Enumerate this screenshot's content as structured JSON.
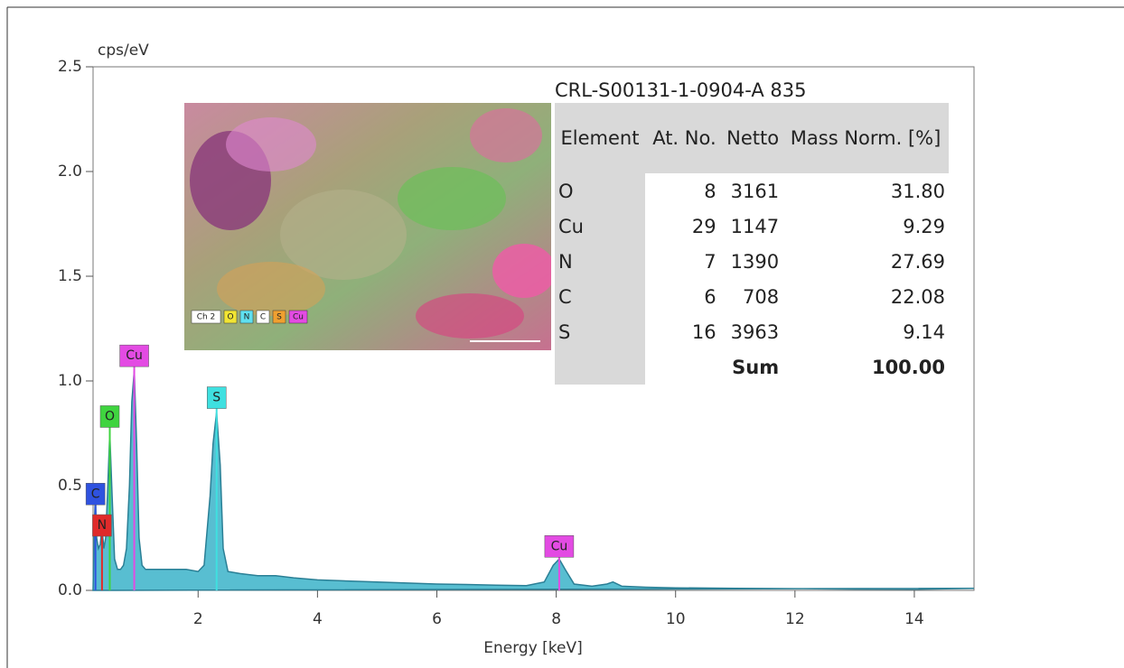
{
  "chart_data": {
    "type": "area",
    "y_label": "cps/eV",
    "x_label": "Energy [keV]",
    "xlim": [
      0.24,
      15
    ],
    "xticks": [
      2,
      4,
      6,
      8,
      10,
      12,
      14
    ],
    "ylim": [
      0,
      2.5
    ],
    "yticks": [
      {
        "value": 0,
        "label": "0.0"
      },
      0.5,
      {
        "value": 1,
        "label": "1.0"
      },
      1.5,
      {
        "value": 2,
        "label": "2.0"
      },
      2.5
    ],
    "color": "#3bb3c9",
    "line_color": "#2a7f95",
    "x": [
      0.24,
      0.26,
      0.28,
      0.3,
      0.33,
      0.36,
      0.39,
      0.42,
      0.45,
      0.48,
      0.52,
      0.56,
      0.6,
      0.65,
      0.7,
      0.75,
      0.8,
      0.85,
      0.89,
      0.93,
      0.97,
      1.01,
      1.06,
      1.12,
      1.2,
      1.4,
      1.6,
      1.8,
      2.0,
      2.1,
      2.2,
      2.25,
      2.31,
      2.37,
      2.42,
      2.5,
      2.7,
      3.0,
      3.3,
      3.6,
      4.0,
      4.5,
      5.0,
      5.5,
      6.0,
      6.5,
      7.0,
      7.5,
      7.8,
      7.95,
      8.05,
      8.15,
      8.3,
      8.6,
      8.85,
      8.95,
      9.1,
      9.5,
      10,
      11,
      12,
      13,
      14,
      15
    ],
    "values": [
      0,
      0.3,
      0.45,
      0.25,
      0.2,
      0.22,
      0.3,
      0.2,
      0.25,
      0.45,
      0.75,
      0.45,
      0.15,
      0.1,
      0.1,
      0.12,
      0.2,
      0.5,
      0.9,
      1.05,
      0.7,
      0.25,
      0.12,
      0.1,
      0.1,
      0.1,
      0.1,
      0.1,
      0.09,
      0.12,
      0.45,
      0.7,
      0.85,
      0.6,
      0.2,
      0.09,
      0.08,
      0.07,
      0.07,
      0.06,
      0.05,
      0.045,
      0.04,
      0.035,
      0.03,
      0.028,
      0.025,
      0.023,
      0.04,
      0.12,
      0.15,
      0.1,
      0.03,
      0.02,
      0.03,
      0.04,
      0.02,
      0.015,
      0.012,
      0.01,
      0.008,
      0.006,
      0.005,
      0.01
    ],
    "annotations": [
      {
        "label": "Cu",
        "x": 0.93,
        "y": 1.12,
        "color": "#e34be3"
      },
      {
        "label": "O",
        "x": 0.52,
        "y": 0.83,
        "color": "#3fd43f"
      },
      {
        "label": "S",
        "x": 2.31,
        "y": 0.92,
        "color": "#3fe0e0"
      },
      {
        "label": "C",
        "x": 0.28,
        "y": 0.46,
        "color": "#2f52e0"
      },
      {
        "label": "N",
        "x": 0.39,
        "y": 0.31,
        "color": "#e02a2a"
      },
      {
        "label": "Cu",
        "x": 8.05,
        "y": 0.21,
        "color": "#e34be3"
      }
    ],
    "inset_legend": [
      {
        "label": "Ch 2",
        "color": "#ffffff"
      },
      {
        "label": "O",
        "color": "#f2e533"
      },
      {
        "label": "N",
        "color": "#5fe0f0"
      },
      {
        "label": "C",
        "color": "#ffffff"
      },
      {
        "label": "S",
        "color": "#f0a030"
      },
      {
        "label": "Cu",
        "color": "#e34be3"
      }
    ],
    "table": {
      "title": "CRL-S00131-1-0904-A 835",
      "header": [
        "Element",
        "At. No.",
        "Netto",
        "Mass Norm. [%]"
      ],
      "rows": [
        [
          "O",
          8,
          3161,
          "31.80"
        ],
        [
          "Cu",
          29,
          1147,
          "9.29"
        ],
        [
          "N",
          7,
          1390,
          "27.69"
        ],
        [
          "C",
          6,
          708,
          "22.08"
        ],
        [
          "S",
          16,
          3963,
          "9.14"
        ]
      ],
      "sum": [
        "Sum",
        "100.00"
      ]
    }
  }
}
